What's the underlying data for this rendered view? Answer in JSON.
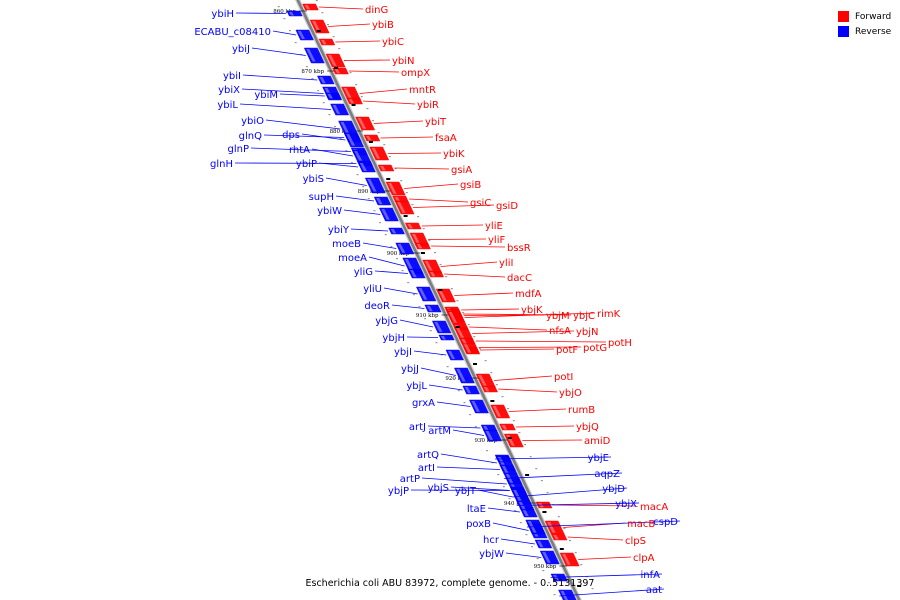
{
  "legend": {
    "forward_label": "Forward",
    "reverse_label": "Reverse"
  },
  "colors": {
    "forward": "#ff0000",
    "reverse": "#0000ff",
    "axis": "#8a8a8a"
  },
  "caption": "Escherichia coli ABU 83972, complete genome. - 0..5131397",
  "ticks": [
    "860 kbp",
    "870 kbp",
    "880 kbp",
    "890 kbp",
    "900 kbp",
    "910 kbp",
    "920 kbp",
    "930 kbp",
    "940 kbp",
    "950 kbp"
  ],
  "forward_genes": [
    "dinG",
    "ybiB",
    "ybiC",
    "ybiN",
    "ompX",
    "mntR",
    "ybiR",
    "ybiT",
    "fsaA",
    "ybiK",
    "gsiA",
    "gsiB",
    "gsiC",
    "gsiD",
    "yliE",
    "yliF",
    "bssR",
    "yliI",
    "dacC",
    "mdfA",
    "ybjK",
    "ybjM",
    "ybjC",
    "rimK",
    "nfsA",
    "ybjN",
    "potF",
    "potG",
    "potH",
    "potI",
    "ybjO",
    "rumB",
    "ybjQ",
    "amiD",
    "macA",
    "macB",
    "clpS",
    "clpA"
  ],
  "reverse_genes": [
    "ybiH",
    "ECABU_c08410",
    "ybiJ",
    "ybiI",
    "ybiX",
    "ybiM",
    "ybiL",
    "ybiO",
    "glnQ",
    "dps",
    "glnP",
    "rhtA",
    "glnH",
    "ybiP",
    "ybiS",
    "supH",
    "ybiW",
    "ybiY",
    "moeB",
    "moeA",
    "yliG",
    "yliU",
    "deoR",
    "ybjG",
    "ybjH",
    "ybjI",
    "ybjJ",
    "ybjL",
    "grxA",
    "artJ",
    "artM",
    "artQ",
    "artI",
    "artP",
    "ybjS",
    "ybjT",
    "ybjP",
    "ltaE",
    "poxB",
    "hcr",
    "ybjW",
    "ybjE",
    "aqpZ",
    "ybjD",
    "ybjX",
    "cspD",
    "infA",
    "aat"
  ]
}
